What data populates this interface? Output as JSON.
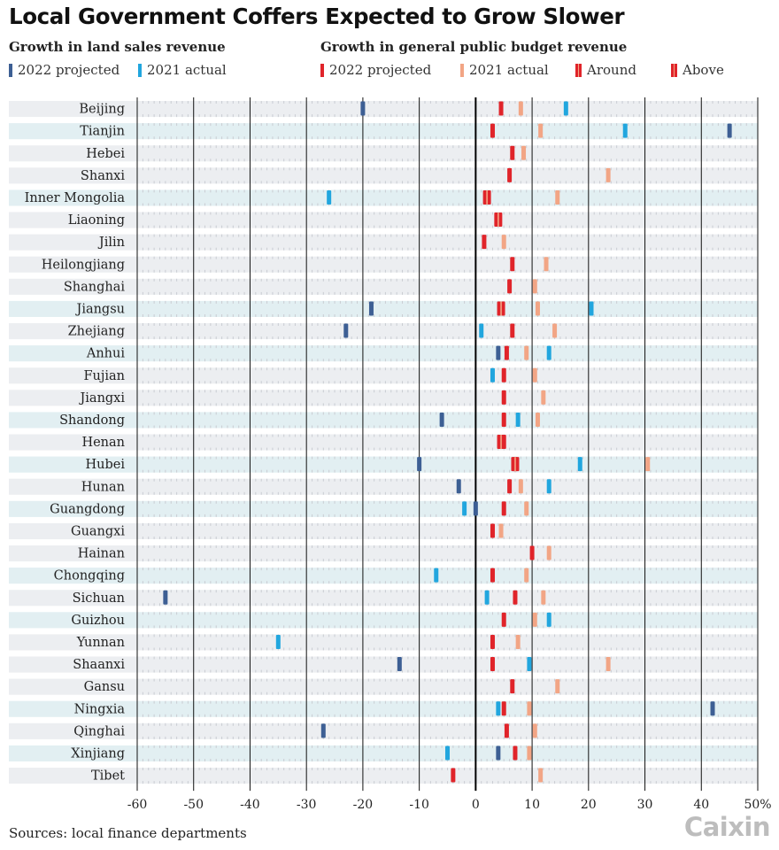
{
  "title": "Local Government Coffers Expected to Grow Slower",
  "legend": {
    "land_group_title": "Growth in land sales revenue",
    "budget_group_title": "Growth in general public budget revenue",
    "land_2022": "2022 projected",
    "land_2021": "2021 actual",
    "budget_2022": "2022 projected",
    "budget_2021": "2021 actual",
    "around": "Around",
    "above": "Above"
  },
  "colors": {
    "land_2022": "#3d5f94",
    "land_2021": "#21a6de",
    "budget_2022": "#e0242a",
    "budget_2021": "#f2a585",
    "row_shade": "#eceef1",
    "row_tint": "#e2eff2",
    "zero_line": "#000000",
    "major_grid": "#111111"
  },
  "source": "Sources: local finance departments",
  "brand": "Caixin",
  "chart_data": {
    "type": "scatter",
    "x_unit": "%",
    "xlim": [
      -60,
      50
    ],
    "x_ticks": [
      "-60",
      "-50",
      "-40",
      "-30",
      "-20",
      "-10",
      "0",
      "10",
      "20",
      "30",
      "40",
      "50%"
    ],
    "categories": [
      "Beijing",
      "Tianjin",
      "Hebei",
      "Shanxi",
      "Inner Mongolia",
      "Liaoning",
      "Jilin",
      "Heilongjiang",
      "Shanghai",
      "Jiangsu",
      "Zhejiang",
      "Anhui",
      "Fujian",
      "Jiangxi",
      "Shandong",
      "Henan",
      "Hubei",
      "Hunan",
      "Guangdong",
      "Guangxi",
      "Hainan",
      "Chongqing",
      "Sichuan",
      "Guizhou",
      "Yunnan",
      "Shaanxi",
      "Gansu",
      "Ningxia",
      "Qinghai",
      "Xinjiang",
      "Tibet"
    ],
    "series": [
      {
        "name": "Growth in land sales revenue: 2022 projected",
        "key": "land_2022",
        "values": [
          -20,
          45,
          null,
          null,
          null,
          null,
          null,
          null,
          null,
          -18.5,
          -23,
          4,
          null,
          null,
          -6,
          null,
          -10,
          -3,
          0,
          null,
          null,
          null,
          -55,
          null,
          null,
          -13.5,
          null,
          42,
          -27,
          4,
          null
        ]
      },
      {
        "name": "Growth in land sales revenue: 2021 actual",
        "key": "land_2021",
        "values": [
          16,
          26.5,
          null,
          null,
          -26,
          null,
          null,
          null,
          null,
          20.5,
          1,
          13,
          3,
          null,
          7.5,
          null,
          18.5,
          13,
          -2,
          null,
          null,
          -7,
          2,
          13,
          -35,
          9.5,
          null,
          4,
          null,
          -5,
          null
        ]
      },
      {
        "name": "Growth in general public budget revenue: 2022 projected",
        "key": "budget_2022",
        "values": [
          4.5,
          3,
          6.5,
          6,
          2,
          4,
          1.5,
          6.5,
          6,
          4.5,
          6.5,
          5.5,
          5,
          5,
          5,
          5,
          7,
          6,
          5,
          3,
          10,
          3,
          7,
          5,
          3,
          3,
          6.5,
          5,
          5.5,
          7,
          -4
        ]
      },
      {
        "name": "Growth in general public budget revenue: 2021 actual",
        "key": "budget_2021",
        "values": [
          8,
          11.5,
          8.5,
          23.5,
          14.5,
          4,
          5,
          12.5,
          10.5,
          11,
          14,
          9,
          10.5,
          12,
          11,
          4.5,
          30.5,
          8,
          9,
          4.5,
          13,
          9,
          12,
          10.5,
          7.5,
          23.5,
          14.5,
          9.5,
          10.5,
          9.5,
          11.5
        ]
      },
      {
        "name": "Around",
        "key": "around",
        "values": [
          null,
          null,
          null,
          null,
          2,
          4,
          null,
          null,
          null,
          4.5,
          null,
          null,
          null,
          null,
          null,
          4.5,
          null,
          null,
          null,
          null,
          null,
          null,
          null,
          null,
          null,
          null,
          null,
          null,
          null,
          null,
          null
        ]
      },
      {
        "name": "Above",
        "key": "above",
        "values": [
          null,
          null,
          null,
          null,
          null,
          null,
          null,
          null,
          null,
          null,
          null,
          null,
          null,
          null,
          null,
          null,
          7,
          null,
          null,
          null,
          null,
          null,
          null,
          null,
          null,
          null,
          null,
          null,
          null,
          null,
          null
        ]
      }
    ]
  }
}
